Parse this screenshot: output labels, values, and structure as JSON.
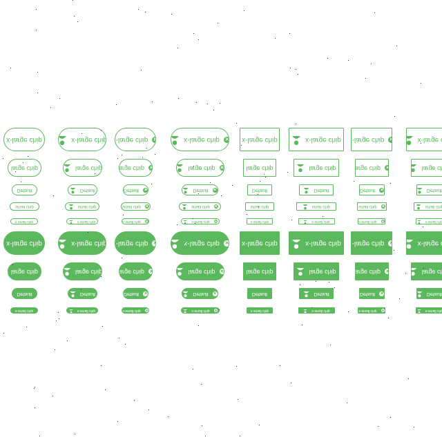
{
  "labels": {
    "x_large": "x-large chip",
    "large": "large chip",
    "default": "Default",
    "small": "small chip",
    "x_small": "x-small chip"
  },
  "icons": {
    "avatar": "avatar-icon",
    "delete": "close-circle-icon"
  },
  "colors": {
    "accent": "#5cb85c",
    "background": "#ffffff"
  },
  "variants": [
    {
      "shape": "pill",
      "fill": "outlined",
      "avatar": false,
      "close": false
    },
    {
      "shape": "pill",
      "fill": "outlined",
      "avatar": true,
      "close": false
    },
    {
      "shape": "pill",
      "fill": "outlined",
      "avatar": false,
      "close": true
    },
    {
      "shape": "pill",
      "fill": "outlined",
      "avatar": true,
      "close": true
    },
    {
      "shape": "rect",
      "fill": "outlined",
      "avatar": false,
      "close": false
    },
    {
      "shape": "rect",
      "fill": "outlined",
      "avatar": true,
      "close": false
    },
    {
      "shape": "rect",
      "fill": "outlined",
      "avatar": false,
      "close": true
    },
    {
      "shape": "rect",
      "fill": "outlined",
      "avatar": true,
      "close": true
    },
    {
      "shape": "pill",
      "fill": "filled",
      "avatar": false,
      "close": false
    },
    {
      "shape": "pill",
      "fill": "filled",
      "avatar": true,
      "close": false
    },
    {
      "shape": "pill",
      "fill": "filled",
      "avatar": false,
      "close": true
    },
    {
      "shape": "pill",
      "fill": "filled",
      "avatar": true,
      "close": true
    },
    {
      "shape": "rect",
      "fill": "filled",
      "avatar": false,
      "close": false
    },
    {
      "shape": "rect",
      "fill": "filled",
      "avatar": true,
      "close": false
    },
    {
      "shape": "rect",
      "fill": "filled",
      "avatar": false,
      "close": true
    },
    {
      "shape": "rect",
      "fill": "filled",
      "avatar": true,
      "close": true
    }
  ],
  "sizes": [
    "x_large",
    "large",
    "default",
    "small",
    "x_small"
  ]
}
